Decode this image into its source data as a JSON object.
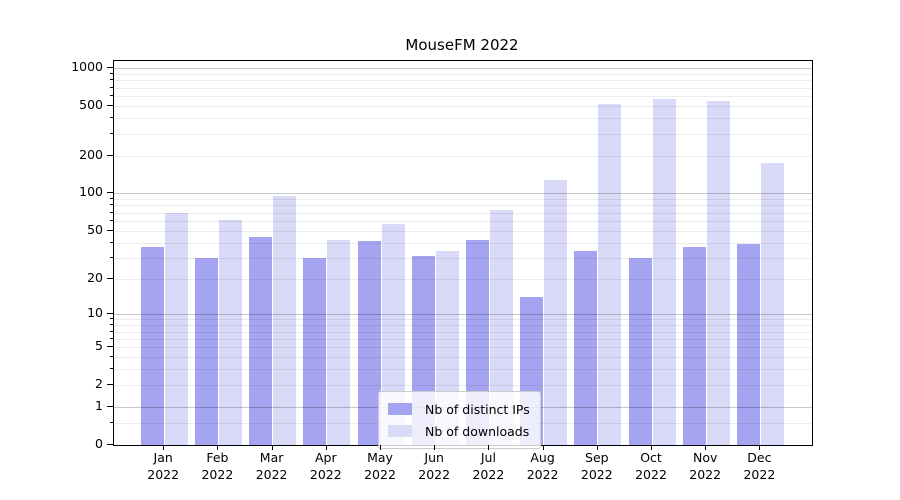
{
  "chart_data": {
    "type": "bar",
    "title": "MouseFM 2022",
    "xlabel": "",
    "ylabel": "",
    "yscale": "log1p",
    "ylim": [
      0,
      1143
    ],
    "grid": true,
    "legend_position": "lower center",
    "year": "2022",
    "categories": [
      "Jan",
      "Feb",
      "Mar",
      "Apr",
      "May",
      "Jun",
      "Jul",
      "Aug",
      "Sep",
      "Oct",
      "Nov",
      "Dec"
    ],
    "series": [
      {
        "name": "Nb of distinct IPs",
        "color": "#a4a4f1",
        "values": [
          37,
          30,
          44,
          30,
          41,
          31,
          42,
          14,
          34,
          30,
          37,
          39
        ]
      },
      {
        "name": "Nb of downloads",
        "color": "#d9d9f8",
        "values": [
          69,
          61,
          96,
          42,
          57,
          34,
          73,
          128,
          520,
          573,
          551,
          176
        ]
      }
    ],
    "yticks": [
      {
        "v": 1000,
        "label": "1000"
      },
      {
        "v": 500,
        "label": "500"
      },
      {
        "v": 200,
        "label": "200"
      },
      {
        "v": 100,
        "label": "100"
      },
      {
        "v": 50,
        "label": "50"
      },
      {
        "v": 20,
        "label": "20"
      },
      {
        "v": 10,
        "label": "10"
      },
      {
        "v": 5,
        "label": "5"
      },
      {
        "v": 2,
        "label": "2"
      },
      {
        "v": 1,
        "label": "1"
      },
      {
        "v": 0,
        "label": "0"
      }
    ],
    "grid_major": [
      1,
      10,
      100,
      1000
    ],
    "grid_minor": [
      0.5,
      2,
      3,
      4,
      5,
      6,
      7,
      8,
      9,
      20,
      30,
      40,
      50,
      60,
      70,
      80,
      90,
      200,
      300,
      400,
      500,
      600,
      700,
      800,
      900
    ]
  }
}
